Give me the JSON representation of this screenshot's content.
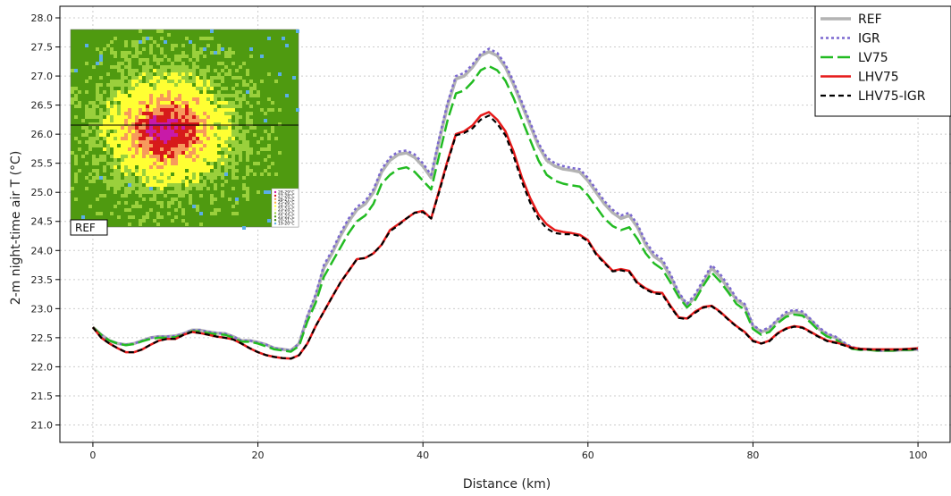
{
  "chart_data": {
    "type": "line",
    "title": "",
    "xlabel": "Distance (km)",
    "ylabel": "2-m night-time air T (°C)",
    "xlim": [
      -4,
      104
    ],
    "ylim": [
      20.7,
      28.2
    ],
    "xticks": [
      0,
      20,
      40,
      60,
      80,
      100
    ],
    "yticks": [
      21.0,
      21.5,
      22.0,
      22.5,
      23.0,
      23.5,
      24.0,
      24.5,
      25.0,
      25.5,
      26.0,
      26.5,
      27.0,
      27.5,
      28.0
    ],
    "grid": true,
    "legend_position": "top-right",
    "x": [
      0,
      1,
      2,
      3,
      4,
      5,
      6,
      7,
      8,
      9,
      10,
      11,
      12,
      13,
      14,
      15,
      16,
      17,
      18,
      19,
      20,
      21,
      22,
      23,
      24,
      25,
      26,
      27,
      28,
      29,
      30,
      31,
      32,
      33,
      34,
      35,
      36,
      37,
      38,
      39,
      40,
      41,
      42,
      43,
      44,
      45,
      46,
      47,
      48,
      49,
      50,
      51,
      52,
      53,
      54,
      55,
      56,
      57,
      58,
      59,
      60,
      61,
      62,
      63,
      64,
      65,
      66,
      67,
      68,
      69,
      70,
      71,
      72,
      73,
      74,
      75,
      76,
      77,
      78,
      79,
      80,
      81,
      82,
      83,
      84,
      85,
      86,
      87,
      88,
      89,
      90,
      91,
      92,
      93,
      94,
      95,
      96,
      97,
      98,
      99,
      100
    ],
    "series": [
      {
        "name": "REF",
        "color": "#b3b3b3",
        "dash": "solid",
        "values": [
          22.68,
          22.55,
          22.45,
          22.4,
          22.38,
          22.4,
          22.45,
          22.5,
          22.52,
          22.52,
          22.53,
          22.57,
          22.63,
          22.63,
          22.6,
          22.58,
          22.57,
          22.52,
          22.45,
          22.45,
          22.42,
          22.38,
          22.32,
          22.3,
          22.28,
          22.4,
          22.85,
          23.2,
          23.7,
          23.95,
          24.25,
          24.5,
          24.7,
          24.8,
          25.0,
          25.35,
          25.55,
          25.65,
          25.68,
          25.6,
          25.45,
          25.25,
          25.9,
          26.5,
          26.95,
          27.0,
          27.15,
          27.35,
          27.42,
          27.35,
          27.15,
          26.85,
          26.5,
          26.15,
          25.8,
          25.55,
          25.45,
          25.4,
          25.38,
          25.35,
          25.2,
          25.0,
          24.8,
          24.65,
          24.55,
          24.6,
          24.4,
          24.1,
          23.9,
          23.8,
          23.55,
          23.25,
          23.05,
          23.2,
          23.45,
          23.7,
          23.55,
          23.35,
          23.15,
          23.05,
          22.7,
          22.6,
          22.65,
          22.8,
          22.9,
          22.95,
          22.92,
          22.8,
          22.65,
          22.55,
          22.5,
          22.4,
          22.32,
          22.3,
          22.3,
          22.28,
          22.28,
          22.28,
          22.29,
          22.29,
          22.3
        ]
      },
      {
        "name": "IGR",
        "color": "#7b68d0",
        "dash": "dotted",
        "values": [
          22.68,
          22.55,
          22.45,
          22.4,
          22.38,
          22.4,
          22.45,
          22.5,
          22.52,
          22.52,
          22.53,
          22.57,
          22.63,
          22.63,
          22.6,
          22.58,
          22.57,
          22.52,
          22.45,
          22.45,
          22.42,
          22.38,
          22.32,
          22.3,
          22.28,
          22.4,
          22.88,
          23.25,
          23.75,
          24.0,
          24.3,
          24.55,
          24.75,
          24.85,
          25.05,
          25.4,
          25.6,
          25.7,
          25.72,
          25.65,
          25.5,
          25.3,
          25.95,
          26.55,
          27.0,
          27.05,
          27.2,
          27.38,
          27.47,
          27.4,
          27.2,
          26.9,
          26.55,
          26.2,
          25.85,
          25.6,
          25.5,
          25.45,
          25.42,
          25.4,
          25.25,
          25.05,
          24.85,
          24.7,
          24.6,
          24.65,
          24.45,
          24.15,
          23.95,
          23.85,
          23.6,
          23.28,
          23.08,
          23.25,
          23.5,
          23.75,
          23.6,
          23.4,
          23.18,
          23.08,
          22.72,
          22.62,
          22.68,
          22.82,
          22.94,
          22.98,
          22.95,
          22.82,
          22.68,
          22.57,
          22.52,
          22.42,
          22.34,
          22.31,
          22.3,
          22.28,
          22.28,
          22.28,
          22.29,
          22.29,
          22.3
        ]
      },
      {
        "name": "LV75",
        "color": "#22bb22",
        "dash": "longdash",
        "values": [
          22.68,
          22.55,
          22.45,
          22.4,
          22.37,
          22.39,
          22.44,
          22.48,
          22.5,
          22.5,
          22.51,
          22.55,
          22.61,
          22.61,
          22.58,
          22.56,
          22.55,
          22.5,
          22.43,
          22.43,
          22.4,
          22.35,
          22.3,
          22.28,
          22.26,
          22.36,
          22.78,
          23.1,
          23.55,
          23.8,
          24.05,
          24.3,
          24.5,
          24.6,
          24.8,
          25.15,
          25.3,
          25.4,
          25.43,
          25.35,
          25.2,
          25.05,
          25.65,
          26.25,
          26.7,
          26.75,
          26.9,
          27.1,
          27.17,
          27.1,
          26.92,
          26.62,
          26.25,
          25.9,
          25.55,
          25.3,
          25.2,
          25.15,
          25.12,
          25.1,
          24.95,
          24.75,
          24.55,
          24.42,
          24.35,
          24.4,
          24.2,
          23.95,
          23.78,
          23.68,
          23.45,
          23.2,
          23.02,
          23.15,
          23.4,
          23.62,
          23.47,
          23.28,
          23.08,
          22.98,
          22.65,
          22.55,
          22.6,
          22.75,
          22.86,
          22.9,
          22.88,
          22.76,
          22.62,
          22.52,
          22.47,
          22.38,
          22.31,
          22.29,
          22.29,
          22.28,
          22.28,
          22.28,
          22.29,
          22.29,
          22.3
        ]
      },
      {
        "name": "LHV75",
        "color": "#e61a1a",
        "dash": "solid",
        "values": [
          22.68,
          22.5,
          22.4,
          22.32,
          22.25,
          22.25,
          22.3,
          22.38,
          22.45,
          22.48,
          22.48,
          22.55,
          22.6,
          22.58,
          22.55,
          22.52,
          22.5,
          22.47,
          22.4,
          22.32,
          22.25,
          22.2,
          22.17,
          22.15,
          22.14,
          22.2,
          22.4,
          22.7,
          22.95,
          23.2,
          23.45,
          23.65,
          23.85,
          23.87,
          23.95,
          24.1,
          24.35,
          24.45,
          24.55,
          24.65,
          24.68,
          24.55,
          25.05,
          25.55,
          26.0,
          26.05,
          26.15,
          26.32,
          26.38,
          26.25,
          26.05,
          25.7,
          25.25,
          24.9,
          24.62,
          24.45,
          24.35,
          24.32,
          24.3,
          24.27,
          24.18,
          23.95,
          23.8,
          23.65,
          23.68,
          23.65,
          23.45,
          23.35,
          23.28,
          23.27,
          23.05,
          22.85,
          22.83,
          22.95,
          23.03,
          23.05,
          22.95,
          22.82,
          22.7,
          22.6,
          22.45,
          22.4,
          22.45,
          22.58,
          22.66,
          22.7,
          22.68,
          22.6,
          22.52,
          22.45,
          22.42,
          22.38,
          22.33,
          22.31,
          22.3,
          22.3,
          22.3,
          22.3,
          22.3,
          22.31,
          22.32
        ]
      },
      {
        "name": "LHV75-IGR",
        "color": "#000000",
        "dash": "dashed",
        "values": [
          22.68,
          22.5,
          22.4,
          22.32,
          22.25,
          22.25,
          22.3,
          22.38,
          22.45,
          22.48,
          22.48,
          22.55,
          22.6,
          22.58,
          22.55,
          22.52,
          22.5,
          22.47,
          22.4,
          22.32,
          22.25,
          22.2,
          22.17,
          22.15,
          22.14,
          22.2,
          22.4,
          22.7,
          22.95,
          23.2,
          23.45,
          23.65,
          23.85,
          23.87,
          23.95,
          24.1,
          24.33,
          24.43,
          24.55,
          24.65,
          24.66,
          24.55,
          25.02,
          25.52,
          25.98,
          26.02,
          26.1,
          26.25,
          26.32,
          26.18,
          25.98,
          25.62,
          25.18,
          24.82,
          24.55,
          24.38,
          24.3,
          24.28,
          24.28,
          24.25,
          24.16,
          23.93,
          23.78,
          23.64,
          23.66,
          23.63,
          23.43,
          23.33,
          23.26,
          23.25,
          23.03,
          22.84,
          22.82,
          22.93,
          23.02,
          23.04,
          22.94,
          22.81,
          22.69,
          22.59,
          22.44,
          22.4,
          22.44,
          22.57,
          22.65,
          22.69,
          22.67,
          22.59,
          22.51,
          22.44,
          22.41,
          22.37,
          22.32,
          22.3,
          22.3,
          22.29,
          22.29,
          22.29,
          22.3,
          22.3,
          22.31
        ]
      }
    ]
  },
  "inset": {
    "label": "REF",
    "colors": {
      "background": "#4f9a10",
      "green_light": "#9ad03c",
      "yellow": "#ffff33",
      "orange": "#f79a5c",
      "red": "#d71a1a",
      "magenta": "#c81aa8",
      "blue": "#5aaee8"
    },
    "legend": [
      "28-29°C",
      "27-28°C",
      "26-27°C",
      "25-26°C",
      "24-25°C",
      "23-24°C",
      "22-23°C",
      "21-22°C",
      "20-21°C",
      "19-20°C"
    ],
    "legend_colors": [
      "#c81aa8",
      "#d71a1a",
      "#f79a5c",
      "#ffb347",
      "#ffff33",
      "#ffff99",
      "#9ad03c",
      "#4f9a10",
      "#3e7d0c",
      "#5aaee8"
    ]
  }
}
